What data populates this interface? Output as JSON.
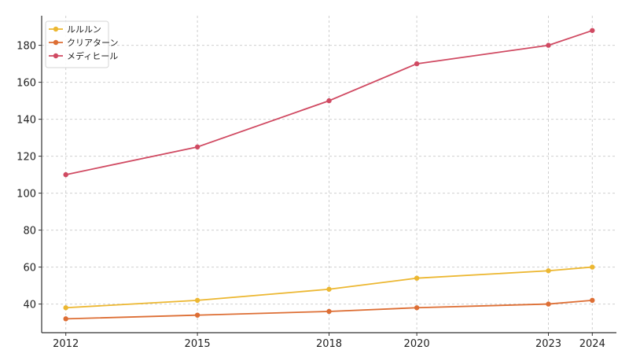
{
  "chart_data": {
    "type": "line",
    "x": [
      2012,
      2015,
      2018,
      2020,
      2023,
      2024
    ],
    "series": [
      {
        "name": "ルルルン",
        "color": "#ecb731",
        "values": [
          38,
          42,
          48,
          54,
          58,
          60
        ]
      },
      {
        "name": "クリアターン",
        "color": "#dd6e34",
        "values": [
          32,
          34,
          36,
          38,
          40,
          42
        ]
      },
      {
        "name": "メディヒール",
        "color": "#d04a62",
        "values": [
          110,
          125,
          150,
          170,
          180,
          188
        ]
      }
    ],
    "title": "",
    "xlabel": "",
    "ylabel": "",
    "xlim": [
      2011.45,
      2024.55
    ],
    "ylim": [
      24.5,
      196
    ],
    "yticks": [
      40,
      60,
      80,
      100,
      120,
      140,
      160,
      180
    ],
    "xticks": [
      2012,
      2015,
      2018,
      2020,
      2023,
      2024
    ],
    "grid": true,
    "legend_position": "top-left"
  }
}
